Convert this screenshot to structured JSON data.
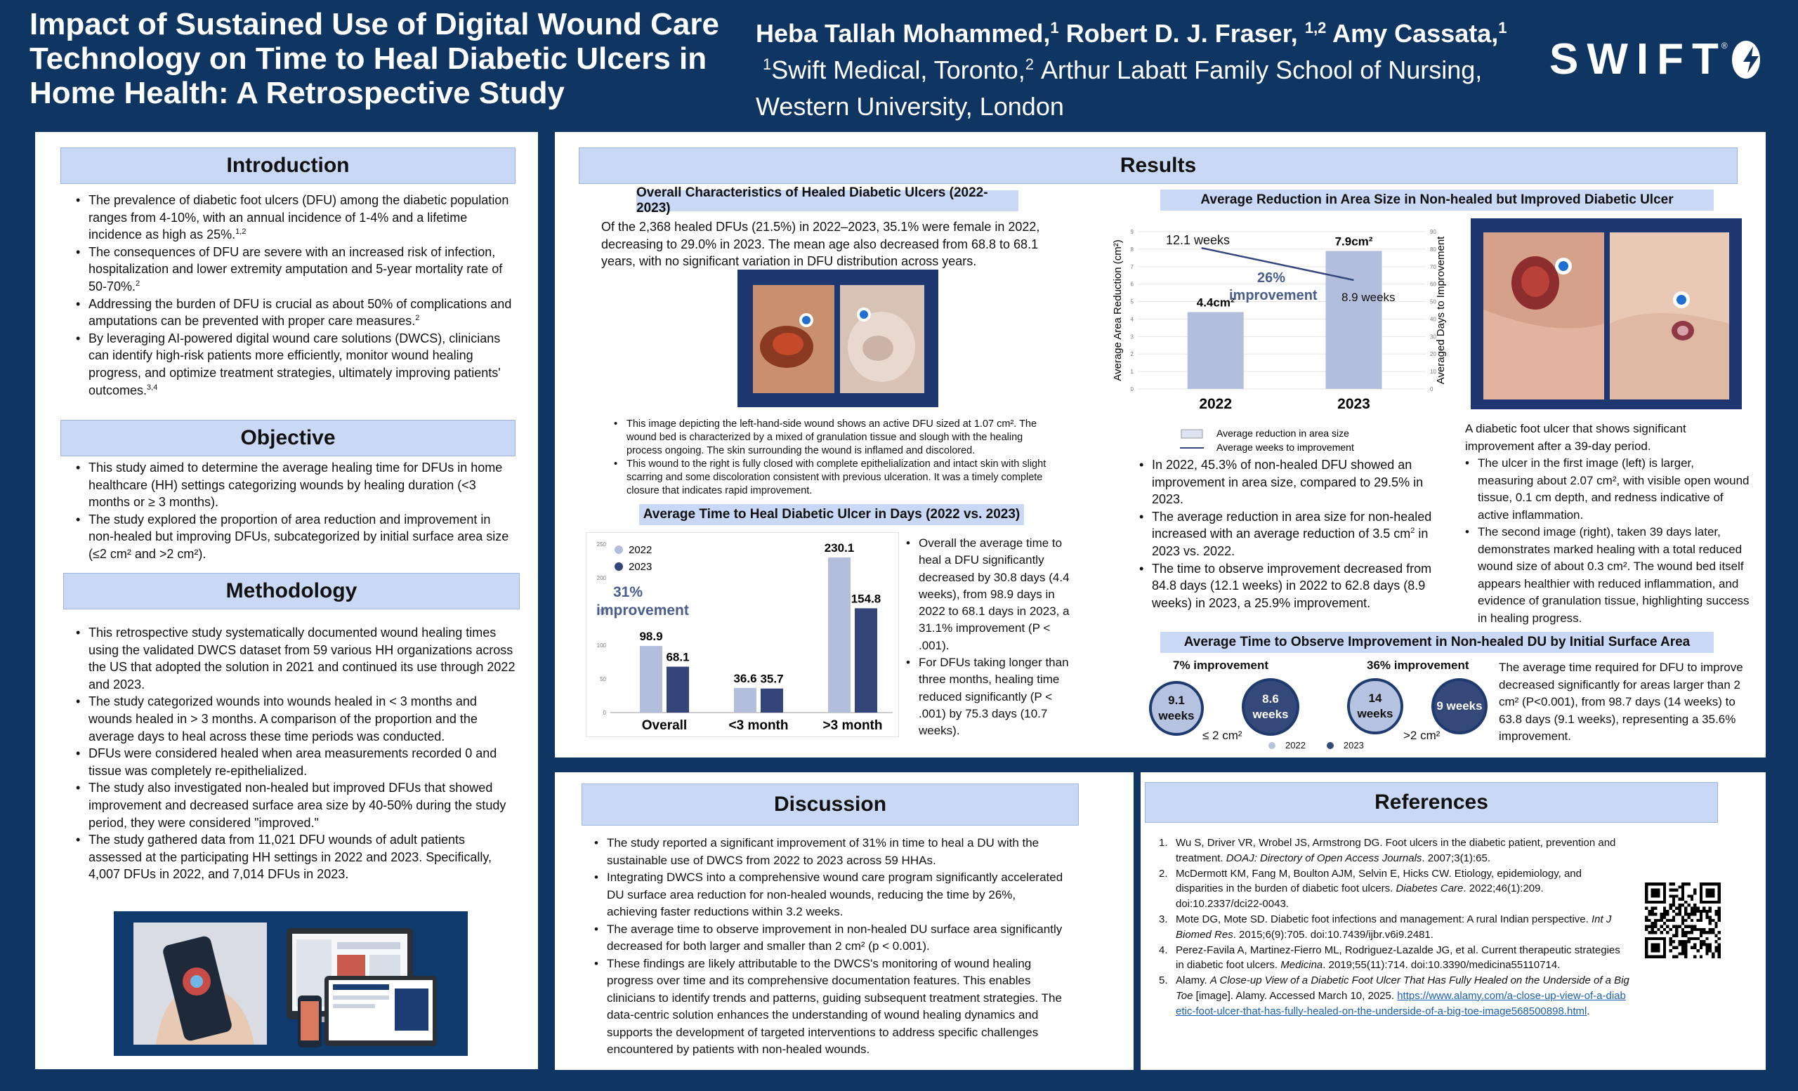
{
  "header": {
    "title": "Impact of Sustained Use of Digital Wound Care Technology on Time to Heal Diabetic Ulcers in Home Health: A Retrospective Study",
    "authors": {
      "a1": "Heba Tallah Mohammed,",
      "a1_sup": "1",
      "a2": "Robert D. J. Fraser,",
      "a2_sup": "1,2",
      "a3": "Amy Cassata,",
      "a3_sup": "1"
    },
    "aff1_sup": "1",
    "aff1": "Swift Medical, Toronto,",
    "aff2_sup": "2",
    "aff2": "Arthur Labatt Family School of Nursing, Western University, London",
    "logo_text": "SWIFT",
    "logo_reg": "®"
  },
  "introduction": {
    "heading": "Introduction",
    "b1": "The prevalence of diabetic foot ulcers (DFU) among the diabetic population ranges from 4-10%, with an annual incidence of 1-4% and a lifetime incidence as high as 25%.",
    "b1_sup": "1,2",
    "b2": "The consequences of DFU are severe with an increased risk of infection, hospitalization and lower extremity amputation and 5-year mortality rate of 50-70%.",
    "b2_sup": "2",
    "b3": "Addressing the burden of DFU is crucial as about 50% of complications and amputations can be prevented with proper care measures.",
    "b3_sup": "2",
    "b4": "By leveraging AI-powered digital wound care solutions (DWCS), clinicians can identify high-risk patients more efficiently, monitor wound healing progress, and optimize treatment strategies, ultimately improving patients' outcomes.",
    "b4_sup": "3,4"
  },
  "objective": {
    "heading": "Objective",
    "b1": "This study aimed to determine the average healing time for DFUs in home healthcare (HH) settings categorizing wounds by healing duration (<3 months or ≥ 3 months).",
    "b2": "The study explored the proportion of area reduction and improvement in non-healed but improving DFUs, subcategorized by initial surface area size (≤2 cm² and >2 cm²)."
  },
  "methodology": {
    "heading": "Methodology",
    "b1": "This retrospective study systematically documented wound healing times using the validated DWCS dataset from 59 various HH organizations across the US that adopted the solution in 2021 and continued its use through 2022 and 2023.",
    "b2": "The study categorized wounds into wounds healed in < 3 months and wounds healed in > 3 months. A comparison of the proportion and the average days to heal across these time periods was conducted.",
    "b3": "DFUs were considered healed when area measurements recorded 0 and tissue was completely re-epithelialized.",
    "b4": "The study also investigated non-healed but improved DFUs that showed improvement and decreased surface area size by 40-50% during the study period, they were considered \"improved.\"",
    "b5": "The study gathered data from 11,021 DFU wounds of adult patients assessed at the participating HH settings in 2022 and 2023. Specifically, 4,007 DFUs in 2022, and 7,014 DFUs in 2023."
  },
  "results": {
    "heading": "Results",
    "overall": {
      "heading": "Overall Characteristics of Healed Diabetic Ulcers (2022-2023)",
      "text": "Of the 2,368 healed DFUs (21.5%) in 2022–2023, 35.1% were female in 2022, decreasing to 29.0% in 2023. The mean age also decreased from 68.8 to 68.1 years, with no significant variation in DFU distribution across years.",
      "img_b1": "This image depicting the left-hand-side wound shows an active DFU sized at 1.07 cm². The wound bed is characterized by a mixed of granulation tissue and slough with the healing process ongoing. The skin surrounding the wound is inflamed and discolored.",
      "img_b2": "This wound to the right is fully closed with complete epithelialization and intact skin with slight scarring and some discoloration consistent with previous ulceration. It was a timely complete closure that indicates rapid improvement."
    },
    "time_heal": {
      "heading": "Average Time to Heal Diabetic Ulcer in Days (2022 vs. 2023)",
      "improvement": "31% improvement",
      "b1": "Overall the average time to heal a DFU significantly decreased by 30.8 days (4.4 weeks), from 98.9 days in 2022 to 68.1 days in 2023, a 31.1% improvement (P < .001).",
      "b2": "For DFUs taking longer than three months, healing time reduced significantly (P < .001) by 75.3 days (10.7 weeks)."
    },
    "area_reduction": {
      "heading": "Average Reduction in Area Size in Non-healed but Improved Diabetic Ulcer",
      "improvement": "26% improvement",
      "week_label_2022": "12.1 weeks",
      "week_label_2023": "8.9 weeks",
      "b1": "In 2022, 45.3% of non-healed DFU showed an improvement in area size, compared to 29.5% in 2023.",
      "b2a": "The average reduction in area size for non-healed  increased with an average reduction of 3.5 cm",
      "b2_sup": "2",
      "b2b": " in 2023 vs. 2022.",
      "b3": "The time to observe improvement decreased from 84.8 days (12.1 weeks) in 2022 to 62.8 days (8.9 weeks) in 2023, a 25.9% improvement."
    },
    "photo_caption": {
      "intro": "A diabetic foot ulcer that shows significant improvement after a 39-day period.",
      "b1": "The ulcer in the first image (left) is larger, measuring about 2.07 cm², with visible open wound tissue, 0.1 cm depth, and redness indicative of active inflammation.",
      "b2": "The second image (right), taken 39 days later, demonstrates marked healing with a total reduced wound size of about 0.3 cm². The wound bed itself appears healthier with reduced inflammation, and evidence of granulation tissue, highlighting success in healing progress."
    },
    "observe": {
      "heading": "Average Time to Observe Improvement in Non-healed DU by Initial Surface Area",
      "imp_small": "7% improvement",
      "imp_large": "36% improvement",
      "c1": "9.1 weeks",
      "c2": "8.6 weeks",
      "c3": "14 weeks",
      "c4": "9 weeks",
      "cat_small": "≤ 2 cm²",
      "cat_large": ">2 cm²",
      "leg_2022": "2022",
      "leg_2023": "2023",
      "text": "The average time required for DFU to improve decreased significantly for areas larger than 2 cm² (P<0.001), from 98.7 days (14 weeks) to 63.8 days (9.1 weeks), representing a 35.6% improvement."
    }
  },
  "discussion": {
    "heading": "Discussion",
    "b1": "The study reported a significant improvement of 31% in time to heal a DU with the sustainable use of DWCS from 2022 to 2023 across 59 HHAs.",
    "b2": "Integrating DWCS into a comprehensive wound care program significantly accelerated DU surface area reduction for non-healed wounds, reducing the time by 26%, achieving faster reductions within 3.2 weeks.",
    "b3": "The average time to observe improvement in non-healed DU surface area significantly decreased for both larger and smaller than 2 cm² (p < 0.001).",
    "b4": "These findings are likely attributable to the DWCS's monitoring of wound healing progress over time and its comprehensive documentation features. This enables clinicians to identify trends and patterns, guiding subsequent treatment strategies. The data-centric solution enhances the understanding of wound healing dynamics and supports the development of targeted interventions to address specific challenges encountered by patients with non-healed wounds."
  },
  "references": {
    "heading": "References",
    "r1_num": "1.",
    "r1_a": "Wu S, Driver VR, Wrobel JS, Armstrong DG. Foot ulcers in the diabetic patient, prevention and treatment. ",
    "r1_i": "DOAJ: Directory of Open Access Journals",
    "r1_b": ". 2007;3(1):65.",
    "r2_num": "2.",
    "r2_a": "McDermott KM, Fang M, Boulton AJM, Selvin E, Hicks CW. Etiology, epidemiology, and disparities in the burden of diabetic foot ulcers. ",
    "r2_i": "Diabetes Care",
    "r2_b": ". 2022;46(1):209. doi:10.2337/dci22-0043.",
    "r3_num": "3.",
    "r3_a": "Mote DG, Mote SD. Diabetic foot infections and management: A rural Indian perspective. ",
    "r3_i": "Int J Biomed Res",
    "r3_b": ". 2015;6(9):705. doi:10.7439/ijbr.v6i9.2481.",
    "r4_num": "4.",
    "r4_a": "Perez-Favila A, Martinez-Fierro ML, Rodriguez-Lazalde JG, et al. Current therapeutic strategies in diabetic foot ulcers. ",
    "r4_i": "Medicina",
    "r4_b": ". 2019;55(11):714. doi:10.3390/medicina55110714.",
    "r5_num": "5.",
    "r5_a": "Alamy. ",
    "r5_i": "A Close-up View of a Diabetic Foot Ulcer That Has Fully Healed on the Underside of a Big Toe",
    "r5_b": " [image]. Alamy. Accessed March 10, 2025. ",
    "r5_link": "https://www.alamy.com/a-close-up-view-of-a-diabetic-foot-ulcer-that-has-fully-healed-on-the-underside-of-a-big-toe-image568500898.html",
    "r5_end": "."
  },
  "chart_data": [
    {
      "type": "bar",
      "title": "Average Time to Heal Diabetic Ulcer in Days (2022 vs. 2023)",
      "categories": [
        "Overall",
        "<3 month",
        ">3 month"
      ],
      "series": [
        {
          "name": "2022",
          "values": [
            98.9,
            36.6,
            230.1
          ]
        },
        {
          "name": "2023",
          "values": [
            68.1,
            35.7,
            154.8
          ]
        }
      ],
      "ylim": [
        0,
        250
      ],
      "yticks": [
        "0",
        "50",
        "100",
        "150",
        "200",
        "250"
      ],
      "legend": "top-left",
      "colors": {
        "2022": "#b3bedd",
        "2023": "#34457a"
      }
    },
    {
      "type": "bar",
      "title": "Average Reduction in Area Size in Non-healed but Improved Diabetic Ulcer",
      "categories": [
        "2022",
        "2023"
      ],
      "series": [
        {
          "name": "Average reduction in area size",
          "values": [
            4.4,
            7.9
          ],
          "labels": [
            "4.4cm²",
            "7.9cm²"
          ]
        },
        {
          "name": "Average weeks to improvement",
          "values": [
            12.1,
            8.9
          ]
        }
      ],
      "ylabel": "Average Area Reduction (cm²)",
      "y2label": "Averaged Days to Improvement",
      "ylim": [
        0,
        9
      ],
      "y2lim": [
        0,
        90
      ],
      "yticks": [
        "0",
        "1",
        "2",
        "3",
        "4",
        "5",
        "6",
        "7",
        "8",
        "9"
      ],
      "y2ticks": [
        "0",
        "10",
        "20",
        "30",
        "40",
        "50",
        "60",
        "70",
        "80",
        "90"
      ],
      "legend": "bottom",
      "colors": {
        "bar": "#b3bedd",
        "line": "#34457a"
      }
    },
    {
      "type": "bar",
      "title": "Average Time to Observe Improvement in Non-healed DU by Initial Surface Area",
      "categories": [
        "≤ 2 cm²",
        ">2 cm²"
      ],
      "series": [
        {
          "name": "2022",
          "values": [
            9.1,
            14
          ]
        },
        {
          "name": "2023",
          "values": [
            8.6,
            9
          ]
        }
      ]
    }
  ]
}
